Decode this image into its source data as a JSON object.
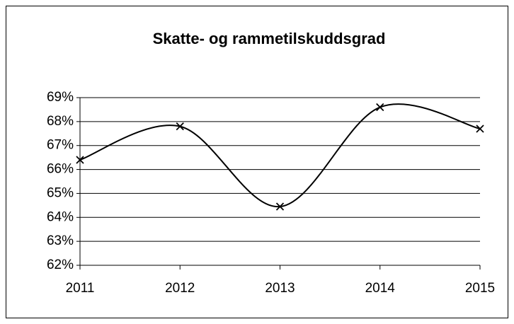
{
  "chart_data": {
    "type": "line",
    "title": "Skatte- og rammetilskuddsgrad",
    "categories": [
      "2011",
      "2012",
      "2013",
      "2014",
      "2015"
    ],
    "series": [
      {
        "name": "Skatte- og rammetilskuddsgrad",
        "color": "#000000",
        "values": [
          66.4,
          67.8,
          64.45,
          68.6,
          67.7
        ]
      }
    ],
    "ylim": [
      62,
      69
    ],
    "yticks": [
      {
        "value": 62,
        "label": "62%"
      },
      {
        "value": 63,
        "label": "63%"
      },
      {
        "value": 64,
        "label": "64%"
      },
      {
        "value": 65,
        "label": "65%"
      },
      {
        "value": 66,
        "label": "66%"
      },
      {
        "value": 67,
        "label": "67%"
      },
      {
        "value": 68,
        "label": "68%"
      },
      {
        "value": 69,
        "label": "69%"
      }
    ],
    "grid": true,
    "smooth": true,
    "marker": "x"
  }
}
